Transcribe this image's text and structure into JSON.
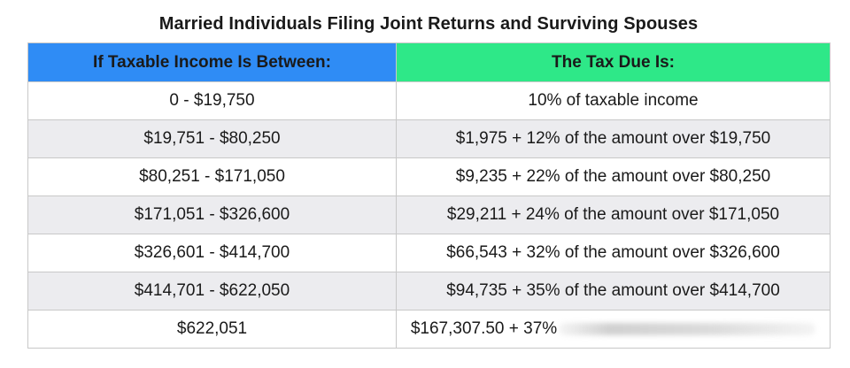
{
  "title": "Married Individuals Filing Joint Returns and Surviving Spouses",
  "headers": {
    "income": "If Taxable Income Is Between:",
    "tax": "The Tax Due Is:"
  },
  "colors": {
    "income_header": "#2f8cf5",
    "tax_header": "#2ee888",
    "alt_row": "#ececef"
  },
  "rows": [
    {
      "income": "0 - $19,750",
      "tax": "10% of taxable income"
    },
    {
      "income": "$19,751 - $80,250",
      "tax": "$1,975 + 12% of the amount over $19,750"
    },
    {
      "income": "$80,251 - $171,050",
      "tax": "$9,235 + 22% of the amount over $80,250"
    },
    {
      "income": "$171,051 - $326,600",
      "tax": "$29,211 + 24% of the amount over $171,050"
    },
    {
      "income": "$326,601 - $414,700",
      "tax": "$66,543 + 32% of the amount over $326,600"
    },
    {
      "income": "$414,701 - $622,050",
      "tax": "$94,735 + 35% of the amount over $414,700"
    },
    {
      "income": "$622,051",
      "tax": "$167,307.50 + 37%"
    }
  ]
}
